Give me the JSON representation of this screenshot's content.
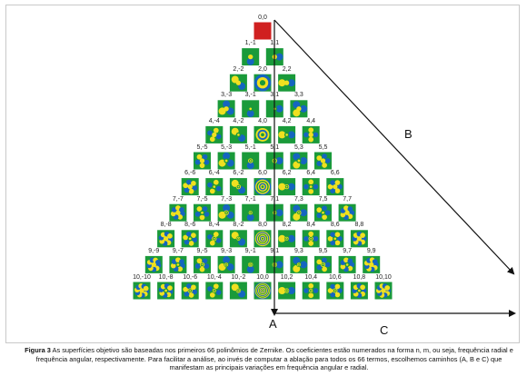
{
  "figure": {
    "path_labels": {
      "A": "A",
      "B": "B",
      "C": "C"
    },
    "caption_label": "Figura 3",
    "caption_text": "As superfícies objetivo são baseadas nos primeiros 66 polinômios de Zernike. Os coeficientes estão numerados na forma n, m, ou seja, frequência radial e frequência angular, respectivamente. Para facilitar a análise, ao invés de computar a ablação para todos os 66 termos, escolhemos caminhos (A, B e C) que manifestam as principais variações em frequência angular e radial."
  },
  "zernike": {
    "max_order": 10,
    "labels": [
      [
        "0,0"
      ],
      [
        "1,-1",
        "1,1"
      ],
      [
        "2,-2",
        "2,0",
        "2,2"
      ],
      [
        "3,-3",
        "3,-1",
        "3,1",
        "3,3"
      ],
      [
        "4,-4",
        "4,-2",
        "4,0",
        "4,2",
        "4,4"
      ],
      [
        "5,-5",
        "5,-3",
        "5,-1",
        "5,1",
        "5,3",
        "5,5"
      ],
      [
        "6,-6",
        "6,-4",
        "6,-2",
        "6,0",
        "6,2",
        "6,4",
        "6,6"
      ],
      [
        "7,-7",
        "7,-5",
        "7,-3",
        "7,-1",
        "7,1",
        "7,3",
        "7,5",
        "7,7"
      ],
      [
        "8,-8",
        "8,-6",
        "8,-4",
        "8,-2",
        "8,0",
        "8,2",
        "8,4",
        "8,6",
        "8,8"
      ],
      [
        "9,-9",
        "9,-7",
        "9,-5",
        "9,-3",
        "9,-1",
        "9,1",
        "9,3",
        "9,5",
        "9,7",
        "9,9"
      ],
      [
        "10,-10",
        "10,-8",
        "10,-6",
        "10,-4",
        "10,-2",
        "10,0",
        "10,2",
        "10,4",
        "10,6",
        "10,8",
        "10,10"
      ]
    ],
    "colors": {
      "low": "#1a9a3a",
      "mid": "#f0e020",
      "high": "#1565c0",
      "peak": "#d02020",
      "axis": "#111111"
    }
  }
}
